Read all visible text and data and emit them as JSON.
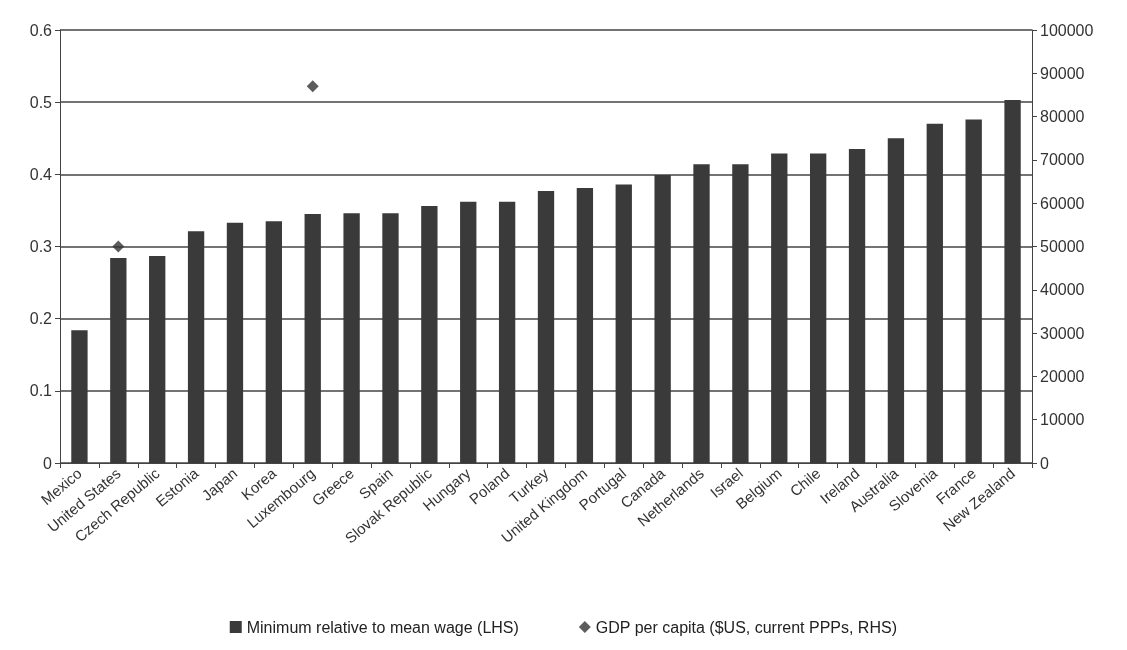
{
  "chart_data": {
    "type": "bar",
    "categories": [
      "Mexico",
      "United States",
      "Czech Republic",
      "Estonia",
      "Japan",
      "Korea",
      "Luxembourg",
      "Greece",
      "Spain",
      "Slovak Republic",
      "Hungary",
      "Poland",
      "Turkey",
      "United Kingdom",
      "Portugal",
      "Canada",
      "Netherlands",
      "Israel",
      "Belgium",
      "Chile",
      "Ireland",
      "Australia",
      "Slovenia",
      "France",
      "New Zealand"
    ],
    "series": [
      {
        "name": "Minimum relative to mean wage (LHS)",
        "color": "#3a3a3a",
        "values": [
          0.184,
          0.284,
          0.287,
          0.321,
          0.333,
          0.335,
          0.345,
          0.346,
          0.346,
          0.356,
          0.362,
          0.362,
          0.377,
          0.381,
          0.386,
          0.399,
          0.414,
          0.414,
          0.429,
          0.429,
          0.435,
          0.45,
          0.47,
          0.476,
          0.503
        ]
      },
      {
        "name": "GDP per capita ($US, current PPPs, RHS)",
        "type": "scatter",
        "axis": "y2",
        "marker": "diamond",
        "color": "#333333",
        "values": [
          null,
          50000,
          null,
          null,
          null,
          null,
          87000,
          null,
          null,
          null,
          null,
          null,
          null,
          null,
          null,
          null,
          null,
          null,
          null,
          null,
          null,
          null,
          null,
          null,
          null
        ]
      }
    ],
    "ylim": [
      0,
      0.6
    ],
    "yticks": [
      0,
      0.1,
      0.2,
      0.3,
      0.4,
      0.5,
      0.6
    ],
    "y2lim": [
      0,
      100000
    ],
    "y2ticks": [
      0,
      10000,
      20000,
      30000,
      40000,
      50000,
      60000,
      70000,
      80000,
      90000,
      100000
    ],
    "grid": "y",
    "legend": "bottom"
  }
}
